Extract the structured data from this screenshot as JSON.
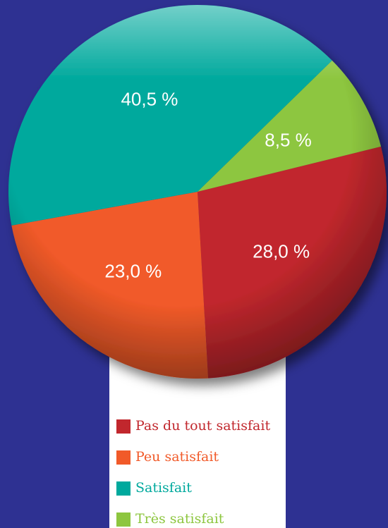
{
  "chart_data": {
    "type": "pie",
    "categories": [
      "Pas du tout satisfait",
      "Peu satisfait",
      "Satisfait",
      "Très satisfait"
    ],
    "values": [
      28.0,
      23.0,
      40.5,
      8.5
    ],
    "value_labels": [
      "28,0 %",
      "23,0 %",
      "40,5 %",
      "8,5 %"
    ],
    "colors": [
      "#c1272d",
      "#f15a29",
      "#00a99d",
      "#8dc63f"
    ]
  }
}
